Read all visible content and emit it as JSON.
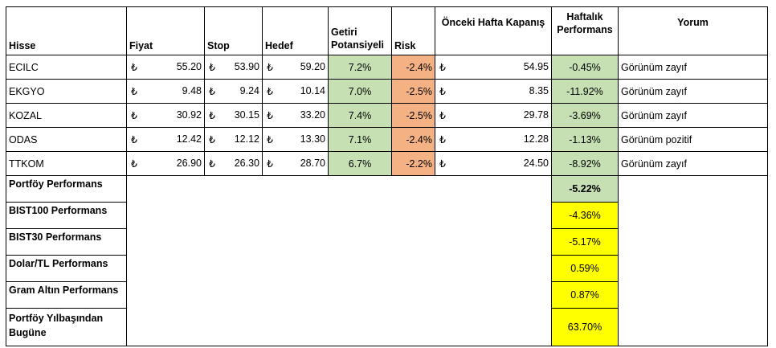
{
  "headers": {
    "hisse": "Hisse",
    "fiyat": "Fiyat",
    "stop": "Stop",
    "hedef": "Hedef",
    "getiri": "Getiri Potansiyeli",
    "risk": "Risk",
    "onceki": "Önceki Hafta Kapanış",
    "haftalik": "Haftalık Performans",
    "yorum": "Yorum"
  },
  "currency": "₺",
  "rows": [
    {
      "hisse": "ECILC",
      "fiyat": "55.20",
      "stop": "53.90",
      "hedef": "59.20",
      "getiri": "7.2%",
      "risk": "-2.4%",
      "onceki": "54.95",
      "haftalik": "-0.45%",
      "yorum": "Görünüm zayıf"
    },
    {
      "hisse": "EKGYO",
      "fiyat": "9.48",
      "stop": "9.24",
      "hedef": "10.14",
      "getiri": "7.0%",
      "risk": "-2.5%",
      "onceki": "8.35",
      "haftalik": "-11.92%",
      "yorum": "Görünüm zayıf"
    },
    {
      "hisse": "KOZAL",
      "fiyat": "30.92",
      "stop": "30.15",
      "hedef": "33.20",
      "getiri": "7.4%",
      "risk": "-2.5%",
      "onceki": "29.78",
      "haftalik": "-3.69%",
      "yorum": "Görünüm zayıf"
    },
    {
      "hisse": "ODAS",
      "fiyat": "12.42",
      "stop": "12.12",
      "hedef": "13.30",
      "getiri": "7.1%",
      "risk": "-2.4%",
      "onceki": "12.28",
      "haftalik": "-1.13%",
      "yorum": "Görünüm pozitif"
    },
    {
      "hisse": "TTKOM",
      "fiyat": "26.90",
      "stop": "26.30",
      "hedef": "28.70",
      "getiri": "6.7%",
      "risk": "-2.2%",
      "onceki": "24.50",
      "haftalik": "-8.92%",
      "yorum": "Görünüm zayıf"
    }
  ],
  "summary": [
    {
      "label": "Portföy Performans",
      "value": "-5.22%"
    },
    {
      "label": "BIST100 Performans",
      "value": "-4.36%"
    },
    {
      "label": "BIST30 Performans",
      "value": "-5.17%"
    },
    {
      "label": "Dolar/TL Performans",
      "value": "0.59%"
    },
    {
      "label": "Gram Altın Performans",
      "value": "0.87%"
    },
    {
      "label": "Portföy Yılbaşından Bugüne",
      "value": "63.70%"
    }
  ],
  "colors": {
    "green": "#c6e0b4",
    "orange": "#f4b183",
    "yellow": "#ffff00"
  }
}
